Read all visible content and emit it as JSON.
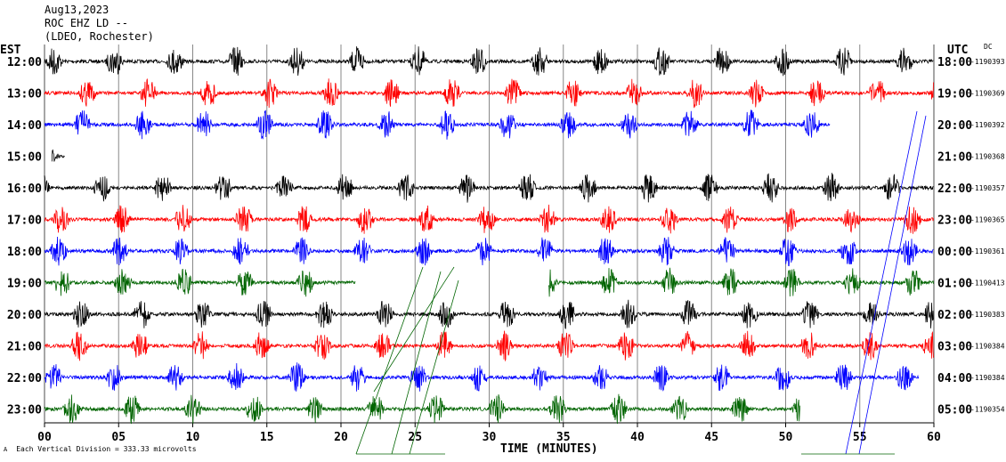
{
  "header": {
    "date": "Aug13,2023",
    "station": "ROC EHZ LD --",
    "network": "(LDEO, Rochester)"
  },
  "left_axis_label": "EST",
  "right_axis_label": "UTC",
  "dc_label": "DC",
  "footer": {
    "scale_note": "Each Vertical Division =  333.33 microvolts",
    "corner_mark": "A"
  },
  "chart_data": {
    "type": "line",
    "title": "ROC EHZ LD -- helicorder, Aug13,2023",
    "xlabel": "TIME (MINUTES)",
    "xlim": [
      0,
      60
    ],
    "x_ticks": [
      "00",
      "05",
      "10",
      "15",
      "20",
      "25",
      "30",
      "35",
      "40",
      "45",
      "50",
      "55",
      "60"
    ],
    "grid": true,
    "rows": [
      {
        "est": "12:00",
        "utc": "18:00",
        "dc": "-1190393",
        "color": "#000000",
        "start_min": 0,
        "end_min": 60
      },
      {
        "est": "13:00",
        "utc": "19:00",
        "dc": "-1190369",
        "color": "#ff0000",
        "start_min": 0,
        "end_min": 60
      },
      {
        "est": "14:00",
        "utc": "20:00",
        "dc": "-1190392",
        "color": "#0000ff",
        "start_min": 0,
        "end_min": 53
      },
      {
        "est": "15:00",
        "utc": "21:00",
        "dc": "-1190368",
        "color": "#000000",
        "start_min": 0.5,
        "end_min": 1.4
      },
      {
        "est": "16:00",
        "utc": "22:00",
        "dc": "-1190357",
        "color": "#000000",
        "start_min": 0,
        "end_min": 60
      },
      {
        "est": "17:00",
        "utc": "23:00",
        "dc": "-1190365",
        "color": "#ff0000",
        "start_min": 0,
        "end_min": 60
      },
      {
        "est": "18:00",
        "utc": "00:00",
        "dc": "-1190361",
        "color": "#0000ff",
        "start_min": 0,
        "end_min": 60
      },
      {
        "est": "19:00",
        "utc": "01:00",
        "dc": "-1190413",
        "color": "#006400",
        "start_min": 0,
        "end_min": 60,
        "gap_min": [
          21,
          34
        ]
      },
      {
        "est": "20:00",
        "utc": "02:00",
        "dc": "-1190383",
        "color": "#000000",
        "start_min": 0,
        "end_min": 60
      },
      {
        "est": "21:00",
        "utc": "03:00",
        "dc": "-1190384",
        "color": "#ff0000",
        "start_min": 0,
        "end_min": 60
      },
      {
        "est": "22:00",
        "utc": "04:00",
        "dc": "-1190384",
        "color": "#0000ff",
        "start_min": 0,
        "end_min": 59
      },
      {
        "est": "23:00",
        "utc": "05:00",
        "dc": "-1190354",
        "color": "#006400",
        "start_min": 0,
        "end_min": 51
      }
    ]
  }
}
